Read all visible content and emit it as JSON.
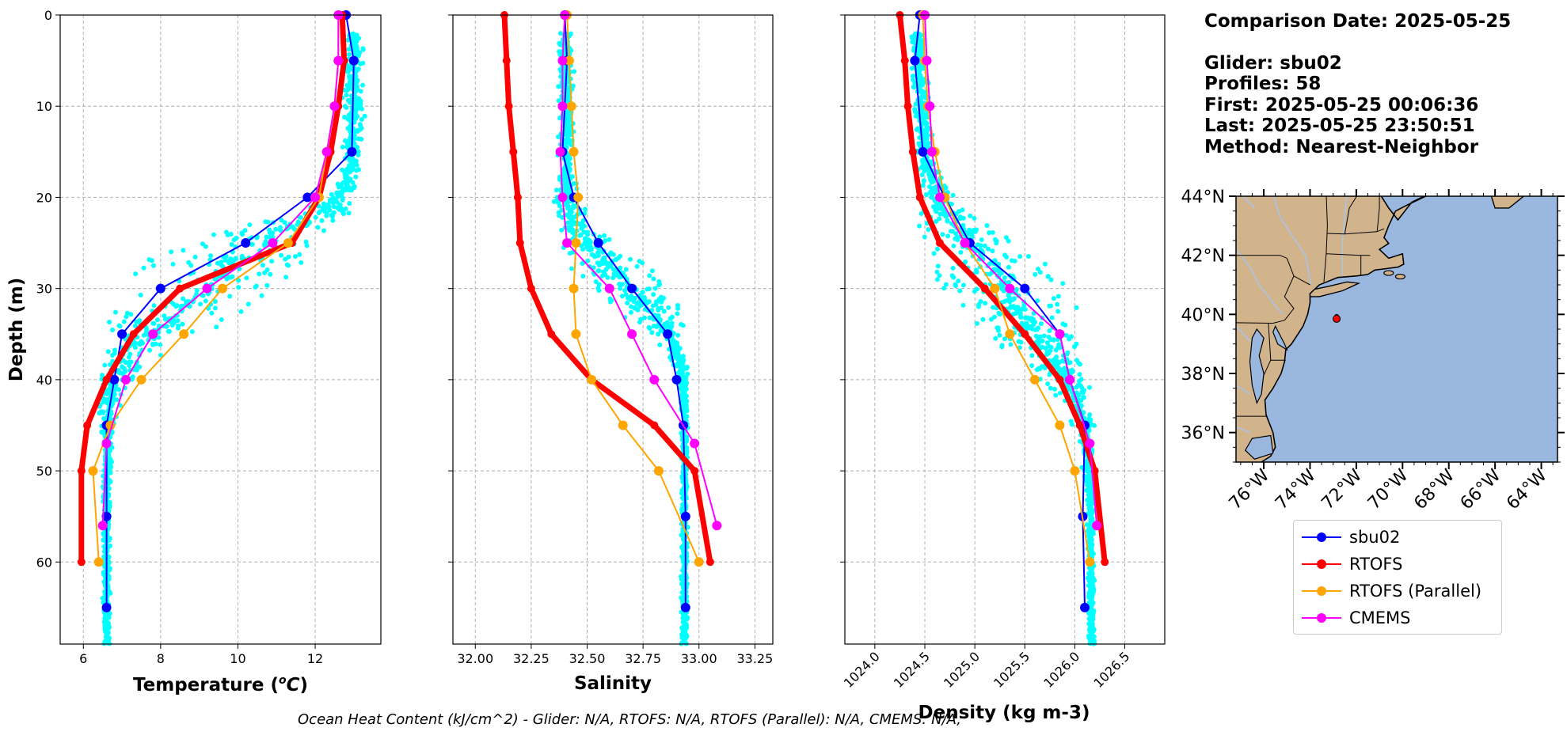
{
  "info": {
    "comparison_date": "Comparison Date: 2025-05-25",
    "glider": "Glider: sbu02",
    "profiles": "Profiles: 58",
    "first": "First: 2025-05-25 00:06:36",
    "last": "Last: 2025-05-25 23:50:51",
    "method": "Method: Nearest-Neighbor"
  },
  "footer": "Ocean Heat Content (kJ/cm^2) - Glider: N/A,  RTOFS: N/A,  RTOFS (Parallel): N/A,  CMEMS: N/A,",
  "legend": [
    {
      "name": "sbu02",
      "color": "#0000ff"
    },
    {
      "name": "RTOFS",
      "color": "#ff0000"
    },
    {
      "name": "RTOFS (Parallel)",
      "color": "#ffa500"
    },
    {
      "name": "CMEMS",
      "color": "#ff00ff"
    }
  ],
  "colors": {
    "scatter": "#00ffff",
    "grid": "#b0b0b0",
    "land": "#d2b48c",
    "ocean": "#9ab7e0",
    "rivers": "#a9c4e8"
  },
  "chart_data": [
    {
      "type": "line",
      "xlabel": "Temperature (°C)",
      "ylabel": "Depth (m)",
      "xlim": [
        5.4,
        13.7
      ],
      "ylim": [
        69,
        0
      ],
      "xticks": [
        6,
        8,
        10,
        12
      ],
      "yticks": [
        0,
        10,
        20,
        30,
        40,
        50,
        60
      ],
      "grid": true,
      "scatter_band": {
        "series": "glider raw observations",
        "depth": [
          2,
          5,
          10,
          15,
          18,
          20,
          22,
          24,
          26,
          28,
          30,
          32,
          34,
          36,
          38,
          40,
          42,
          44,
          46,
          48,
          52,
          56,
          60,
          64,
          69
        ],
        "min": [
          12.7,
          12.7,
          12.7,
          12.7,
          12.7,
          12.2,
          11.0,
          9.0,
          7.8,
          7.3,
          6.9,
          6.7,
          6.5,
          6.4,
          6.4,
          6.4,
          6.4,
          6.4,
          6.45,
          6.5,
          6.5,
          6.5,
          6.5,
          6.5,
          6.5
        ],
        "max": [
          13.3,
          13.3,
          13.3,
          13.2,
          13.1,
          13.0,
          13.0,
          12.9,
          12.6,
          12.2,
          11.5,
          10.5,
          9.5,
          8.5,
          7.8,
          7.3,
          7.0,
          6.9,
          6.8,
          6.75,
          6.7,
          6.7,
          6.7,
          6.7,
          6.7
        ]
      },
      "series": [
        {
          "name": "sbu02",
          "color": "#0000ff",
          "depth": [
            0,
            5,
            15,
            20,
            25,
            30,
            35,
            40,
            45,
            55,
            65
          ],
          "values": [
            12.8,
            13.0,
            12.95,
            11.8,
            10.2,
            8.0,
            7.0,
            6.8,
            6.6,
            6.6,
            6.6
          ]
        },
        {
          "name": "RTOFS",
          "color": "#ff0000",
          "depth": [
            0,
            5,
            10,
            15,
            20,
            25,
            30,
            35,
            40,
            45,
            50,
            60
          ],
          "values": [
            12.7,
            12.75,
            12.6,
            12.4,
            12.1,
            11.4,
            8.5,
            7.3,
            6.6,
            6.1,
            5.95,
            5.95
          ]
        },
        {
          "name": "RTOFS (Parallel)",
          "color": "#ffa500",
          "depth": [
            0,
            5,
            10,
            15,
            20,
            25,
            30,
            35,
            40,
            45,
            50,
            60
          ],
          "values": [
            12.6,
            12.6,
            12.5,
            12.3,
            12.1,
            11.3,
            9.6,
            8.6,
            7.5,
            6.7,
            6.25,
            6.4
          ]
        },
        {
          "name": "CMEMS",
          "color": "#ff00ff",
          "depth": [
            0,
            5,
            10,
            15,
            20,
            25,
            30,
            35,
            40,
            47,
            56
          ],
          "values": [
            12.6,
            12.6,
            12.5,
            12.3,
            12.0,
            10.9,
            9.2,
            7.8,
            7.1,
            6.6,
            6.5
          ]
        }
      ]
    },
    {
      "type": "line",
      "xlabel": "Salinity",
      "ylim": [
        69,
        0
      ],
      "xlim": [
        31.9,
        33.33
      ],
      "xticks": [
        32.0,
        32.25,
        32.5,
        32.75,
        33.0,
        33.25
      ],
      "grid": true,
      "scatter_band": {
        "series": "glider raw observations",
        "depth": [
          2,
          5,
          10,
          15,
          18,
          20,
          22,
          24,
          26,
          28,
          30,
          32,
          34,
          36,
          38,
          40,
          42,
          44,
          46,
          48,
          52,
          56,
          60,
          64,
          69
        ],
        "min": [
          32.37,
          32.37,
          32.37,
          32.37,
          32.36,
          32.35,
          32.35,
          32.35,
          32.37,
          32.42,
          32.5,
          32.6,
          32.72,
          32.82,
          32.88,
          32.91,
          32.92,
          32.92,
          32.92,
          32.92,
          32.92,
          32.92,
          32.92,
          32.92,
          32.92
        ],
        "max": [
          32.44,
          32.44,
          32.44,
          32.44,
          32.45,
          32.47,
          32.5,
          32.58,
          32.7,
          32.83,
          32.9,
          32.93,
          32.95,
          32.95,
          32.95,
          32.95,
          32.95,
          32.95,
          32.95,
          32.95,
          32.95,
          32.95,
          32.95,
          32.95,
          32.95
        ]
      },
      "series": [
        {
          "name": "sbu02",
          "color": "#0000ff",
          "depth": [
            0,
            5,
            15,
            20,
            25,
            30,
            35,
            40,
            45,
            55,
            65
          ],
          "values": [
            32.4,
            32.41,
            32.39,
            32.44,
            32.55,
            32.7,
            32.86,
            32.9,
            32.93,
            32.94,
            32.94
          ]
        },
        {
          "name": "RTOFS",
          "color": "#ff0000",
          "depth": [
            0,
            5,
            10,
            15,
            20,
            25,
            30,
            35,
            40,
            45,
            50,
            60
          ],
          "values": [
            32.13,
            32.14,
            32.15,
            32.17,
            32.19,
            32.2,
            32.25,
            32.34,
            32.52,
            32.8,
            32.98,
            33.05
          ]
        },
        {
          "name": "RTOFS (Parallel)",
          "color": "#ffa500",
          "depth": [
            0,
            5,
            10,
            15,
            20,
            25,
            30,
            35,
            40,
            45,
            50,
            60
          ],
          "values": [
            32.41,
            32.42,
            32.43,
            32.44,
            32.46,
            32.45,
            32.44,
            32.45,
            32.52,
            32.66,
            32.82,
            33.0
          ]
        },
        {
          "name": "CMEMS",
          "color": "#ff00ff",
          "depth": [
            0,
            5,
            10,
            15,
            20,
            25,
            30,
            35,
            40,
            47,
            56
          ],
          "values": [
            32.4,
            32.39,
            32.39,
            32.38,
            32.39,
            32.41,
            32.6,
            32.7,
            32.8,
            32.98,
            33.08
          ]
        }
      ]
    },
    {
      "type": "line",
      "xlabel": "Density (kg m-3)",
      "ylim": [
        69,
        0
      ],
      "xlim": [
        1023.7,
        1026.9
      ],
      "xticks": [
        1024.0,
        1024.5,
        1025.0,
        1025.5,
        1026.0,
        1026.5
      ],
      "grid": true,
      "scatter_band": {
        "series": "glider raw observations",
        "depth": [
          2,
          5,
          10,
          15,
          18,
          20,
          22,
          24,
          26,
          28,
          30,
          32,
          34,
          36,
          38,
          40,
          42,
          44,
          46,
          48,
          52,
          56,
          60,
          64,
          69
        ],
        "min": [
          1024.35,
          1024.36,
          1024.38,
          1024.4,
          1024.42,
          1024.43,
          1024.4,
          1024.45,
          1024.5,
          1024.55,
          1024.62,
          1024.75,
          1024.95,
          1025.2,
          1025.45,
          1025.65,
          1025.85,
          1025.95,
          1026.02,
          1026.05,
          1026.1,
          1026.12,
          1026.13,
          1026.13,
          1026.13
        ],
        "max": [
          1024.5,
          1024.52,
          1024.56,
          1024.6,
          1024.7,
          1024.8,
          1025.0,
          1025.3,
          1025.6,
          1025.85,
          1026.0,
          1026.07,
          1026.1,
          1026.12,
          1026.13,
          1026.15,
          1026.17,
          1026.18,
          1026.2,
          1026.2,
          1026.2,
          1026.2,
          1026.2,
          1026.2,
          1026.2
        ]
      },
      "series": [
        {
          "name": "sbu02",
          "color": "#0000ff",
          "depth": [
            0,
            5,
            15,
            20,
            25,
            30,
            35,
            40,
            45,
            55,
            65
          ],
          "values": [
            1024.45,
            1024.4,
            1024.48,
            1024.7,
            1024.95,
            1025.5,
            1025.85,
            1025.95,
            1026.1,
            1026.08,
            1026.1
          ]
        },
        {
          "name": "RTOFS",
          "color": "#ff0000",
          "depth": [
            0,
            5,
            10,
            15,
            20,
            25,
            30,
            35,
            40,
            45,
            50,
            60
          ],
          "values": [
            1024.25,
            1024.3,
            1024.33,
            1024.38,
            1024.45,
            1024.65,
            1025.1,
            1025.5,
            1025.85,
            1026.05,
            1026.2,
            1026.3
          ]
        },
        {
          "name": "RTOFS (Parallel)",
          "color": "#ffa500",
          "depth": [
            0,
            5,
            10,
            15,
            20,
            25,
            30,
            35,
            40,
            45,
            50,
            60
          ],
          "values": [
            1024.48,
            1024.5,
            1024.53,
            1024.6,
            1024.7,
            1024.9,
            1025.2,
            1025.35,
            1025.6,
            1025.85,
            1026.0,
            1026.15
          ]
        },
        {
          "name": "CMEMS",
          "color": "#ff00ff",
          "depth": [
            0,
            5,
            10,
            15,
            20,
            25,
            30,
            35,
            40,
            47,
            56
          ],
          "values": [
            1024.5,
            1024.52,
            1024.55,
            1024.57,
            1024.65,
            1024.9,
            1025.35,
            1025.85,
            1025.95,
            1026.15,
            1026.22
          ]
        }
      ]
    },
    {
      "type": "map",
      "lonlim": [
        -77.2,
        -63.3
      ],
      "latlim": [
        35,
        44
      ],
      "xticks": [
        "76°W",
        "74°W",
        "72°W",
        "70°W",
        "68°W",
        "66°W",
        "64°W"
      ],
      "yticks": [
        "36°N",
        "38°N",
        "40°N",
        "42°N",
        "44°N"
      ],
      "xtick_values": [
        -76,
        -74,
        -72,
        -70,
        -68,
        -66,
        -64
      ],
      "ytick_values": [
        36,
        38,
        40,
        42,
        44
      ],
      "glider_position": {
        "lon": -72.85,
        "lat": 39.85
      }
    }
  ]
}
